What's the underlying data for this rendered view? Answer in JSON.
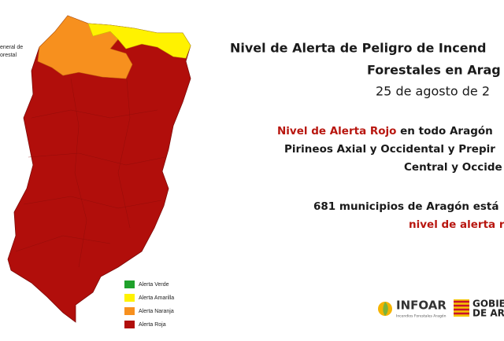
{
  "header": {
    "title_line1": "Nivel de Alerta de Peligro de Incend",
    "title_line2": "Forestales en Arag",
    "date": "25 de agosto de 2"
  },
  "notice": {
    "highlight": "Nivel de Alerta Rojo",
    "rest": " en todo Aragón",
    "line2": "Pirineos Axial y Occidental y Prepir",
    "line3": "Central y Occide"
  },
  "municipalities": {
    "line1": "681 municipios de Aragón está",
    "line2": "nivel de alerta r"
  },
  "map": {
    "note_line1": "eneral de",
    "note_line2": "orestal"
  },
  "legend": [
    "Alerta Verde",
    "Alerta Amarilla",
    "Alerta Naranja",
    "Alerta Roja"
  ],
  "logos": {
    "infoar": "INFOAR",
    "infoar_sub": "Incendios Forestales Aragón",
    "gobierno_line1": "GOBIER",
    "gobierno_line2": "DE ARA"
  }
}
